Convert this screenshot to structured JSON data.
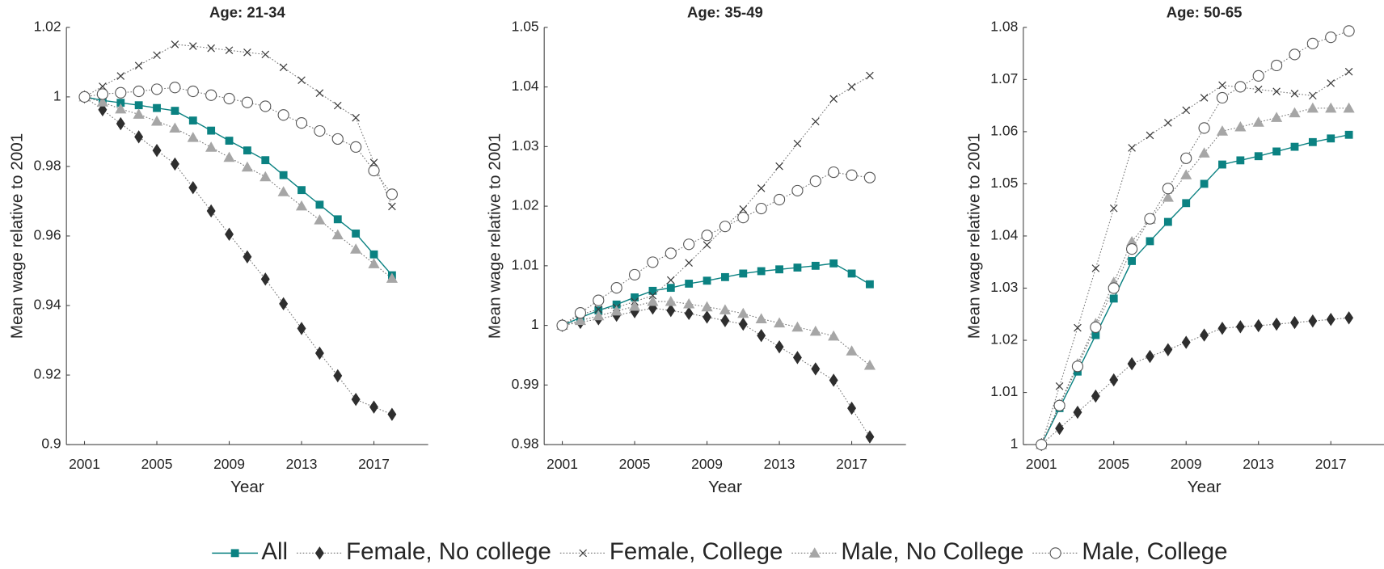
{
  "chart_data": [
    {
      "type": "line",
      "title": "Age: 21-34",
      "x_label": "Year",
      "y_label": "Mean wage relative to 2001",
      "legend": "bottom",
      "x": [
        2001,
        2002,
        2003,
        2004,
        2005,
        2006,
        2007,
        2008,
        2009,
        2010,
        2011,
        2012,
        2013,
        2014,
        2015,
        2016,
        2017,
        2018
      ],
      "xlim": [
        2000,
        2020
      ],
      "xticks": [
        2001,
        2005,
        2009,
        2013,
        2017
      ],
      "ylim": [
        0.9,
        1.02
      ],
      "yticks": [
        0.9,
        0.92,
        0.94,
        0.96,
        0.98,
        1,
        1.02
      ],
      "series": [
        {
          "name": "All",
          "color": "#0b8282",
          "marker": "square",
          "line": "solid",
          "values": [
            1,
            0.999,
            0.9983,
            0.9976,
            0.9968,
            0.996,
            0.9932,
            0.9903,
            0.9874,
            0.9846,
            0.9818,
            0.9775,
            0.9732,
            0.969,
            0.9648,
            0.9607,
            0.9547,
            0.9487
          ]
        },
        {
          "name": "Female, No college",
          "color": "#2e2e2e",
          "marker": "diamond",
          "line": "dotted",
          "values": [
            1,
            0.9963,
            0.9923,
            0.9885,
            0.9846,
            0.9807,
            0.9739,
            0.9672,
            0.9605,
            0.954,
            0.9476,
            0.9405,
            0.9334,
            0.9263,
            0.9198,
            0.913,
            0.9108,
            0.9087
          ]
        },
        {
          "name": "Female, College",
          "color": "#3a3a3a",
          "marker": "cross",
          "line": "dotted",
          "values": [
            1,
            1.003,
            1.006,
            1.009,
            1.012,
            1.0151,
            1.0146,
            1.014,
            1.0134,
            1.0128,
            1.0122,
            1.0085,
            1.0048,
            1.0011,
            0.9975,
            0.994,
            0.9811,
            0.9685
          ]
        },
        {
          "name": "Male, No College",
          "color": "#a6a6a6",
          "marker": "triangle",
          "line": "dotted",
          "values": [
            1,
            0.9985,
            0.9965,
            0.995,
            0.993,
            0.991,
            0.9883,
            0.9855,
            0.9826,
            0.9798,
            0.977,
            0.9727,
            0.9686,
            0.9646,
            0.9603,
            0.9562,
            0.952,
            0.9478
          ]
        },
        {
          "name": "Male, College",
          "color": "#555555",
          "marker": "circle",
          "line": "dotted",
          "values": [
            1,
            1.0008,
            1.0012,
            1.0016,
            1.0022,
            1.0027,
            1.0016,
            1.0005,
            0.9995,
            0.9984,
            0.9973,
            0.9948,
            0.9925,
            0.9902,
            0.9879,
            0.9856,
            0.9788,
            0.972
          ]
        }
      ]
    },
    {
      "type": "line",
      "title": "Age: 35-49",
      "x_label": "Year",
      "y_label": "Mean wage relative to 2001",
      "x": [
        2001,
        2002,
        2003,
        2004,
        2005,
        2006,
        2007,
        2008,
        2009,
        2010,
        2011,
        2012,
        2013,
        2014,
        2015,
        2016,
        2017,
        2018
      ],
      "xlim": [
        2000,
        2020
      ],
      "xticks": [
        2001,
        2005,
        2009,
        2013,
        2017
      ],
      "ylim": [
        0.98,
        1.05
      ],
      "yticks": [
        0.98,
        0.99,
        1,
        1.01,
        1.02,
        1.03,
        1.04,
        1.05
      ],
      "series": [
        {
          "name": "All",
          "color": "#0b8282",
          "marker": "square",
          "line": "solid",
          "values": [
            1,
            1.0013,
            1.0025,
            1.0035,
            1.0047,
            1.0058,
            1.0063,
            1.007,
            1.0075,
            1.0081,
            1.0087,
            1.0091,
            1.0094,
            1.0097,
            1.01,
            1.0104,
            1.0087,
            1.0069
          ]
        },
        {
          "name": "Female, No college",
          "color": "#2e2e2e",
          "marker": "diamond",
          "line": "dotted",
          "values": [
            1,
            1.0005,
            1.0011,
            1.0017,
            1.0023,
            1.0029,
            1.0025,
            1.002,
            1.0014,
            1.0008,
            1.0002,
            0.9983,
            0.9964,
            0.9946,
            0.9927,
            0.9908,
            0.9861,
            0.9813
          ]
        },
        {
          "name": "Female, College",
          "color": "#3a3a3a",
          "marker": "cross",
          "line": "dotted",
          "values": [
            1,
            1.0018,
            1.0027,
            1.003,
            1.004,
            1.005,
            1.0076,
            1.0105,
            1.0135,
            1.0165,
            1.0195,
            1.023,
            1.0267,
            1.0305,
            1.0342,
            1.038,
            1.04,
            1.0419
          ]
        },
        {
          "name": "Male, No College",
          "color": "#a6a6a6",
          "marker": "triangle",
          "line": "dotted",
          "values": [
            1,
            1.0008,
            1.0016,
            1.0024,
            1.0032,
            1.004,
            1.004,
            1.0036,
            1.0031,
            1.0026,
            1.002,
            1.0011,
            1.0004,
            0.9997,
            0.999,
            0.9982,
            0.9957,
            0.9933
          ]
        },
        {
          "name": "Male, College",
          "color": "#555555",
          "marker": "circle",
          "line": "dotted",
          "values": [
            1,
            1.0021,
            1.0042,
            1.0063,
            1.0085,
            1.0106,
            1.0121,
            1.0136,
            1.0151,
            1.0166,
            1.0181,
            1.0196,
            1.0211,
            1.0226,
            1.0242,
            1.0257,
            1.0252,
            1.0248
          ]
        }
      ]
    },
    {
      "type": "line",
      "title": "Age: 50-65",
      "x_label": "Year",
      "y_label": "Mean wage relative to 2001",
      "x": [
        2001,
        2002,
        2003,
        2004,
        2005,
        2006,
        2007,
        2008,
        2009,
        2010,
        2011,
        2012,
        2013,
        2014,
        2015,
        2016,
        2017,
        2018
      ],
      "xlim": [
        2000,
        2020
      ],
      "xticks": [
        2001,
        2005,
        2009,
        2013,
        2017
      ],
      "ylim": [
        1,
        1.08
      ],
      "yticks": [
        1,
        1.01,
        1.02,
        1.03,
        1.04,
        1.05,
        1.06,
        1.07,
        1.08
      ],
      "series": [
        {
          "name": "All",
          "color": "#0b8282",
          "marker": "square",
          "line": "solid",
          "values": [
            1,
            1.007,
            1.014,
            1.021,
            1.028,
            1.0352,
            1.039,
            1.0427,
            1.0463,
            1.05,
            1.0537,
            1.0545,
            1.0553,
            1.0562,
            1.0571,
            1.058,
            1.0587,
            1.0594
          ]
        },
        {
          "name": "Female, No college",
          "color": "#2e2e2e",
          "marker": "diamond",
          "line": "dotted",
          "values": [
            1,
            1.0031,
            1.0062,
            1.0093,
            1.0124,
            1.0155,
            1.0169,
            1.0182,
            1.0196,
            1.021,
            1.0223,
            1.0226,
            1.0228,
            1.0231,
            1.0234,
            1.0237,
            1.024,
            1.0243
          ]
        },
        {
          "name": "Female, College",
          "color": "#3a3a3a",
          "marker": "cross",
          "line": "dotted",
          "values": [
            1,
            1.0112,
            1.0224,
            1.0338,
            1.0453,
            1.0569,
            1.0593,
            1.0617,
            1.0641,
            1.0665,
            1.0689,
            1.0685,
            1.0681,
            1.0677,
            1.0673,
            1.0669,
            1.0693,
            1.0715
          ]
        },
        {
          "name": "Male, No College",
          "color": "#a6a6a6",
          "marker": "triangle",
          "line": "dotted",
          "values": [
            1,
            1.0077,
            1.0155,
            1.0232,
            1.0311,
            1.0389,
            1.0432,
            1.0474,
            1.0517,
            1.0559,
            1.0601,
            1.0609,
            1.0618,
            1.0627,
            1.0636,
            1.0645,
            1.0645,
            1.0645
          ]
        },
        {
          "name": "Male, College",
          "color": "#555555",
          "marker": "circle",
          "line": "dotted",
          "values": [
            1,
            1.0075,
            1.015,
            1.0225,
            1.03,
            1.0375,
            1.0433,
            1.0491,
            1.0549,
            1.0607,
            1.0665,
            1.0686,
            1.0707,
            1.0727,
            1.0748,
            1.0769,
            1.0781,
            1.0793
          ]
        }
      ]
    }
  ]
}
